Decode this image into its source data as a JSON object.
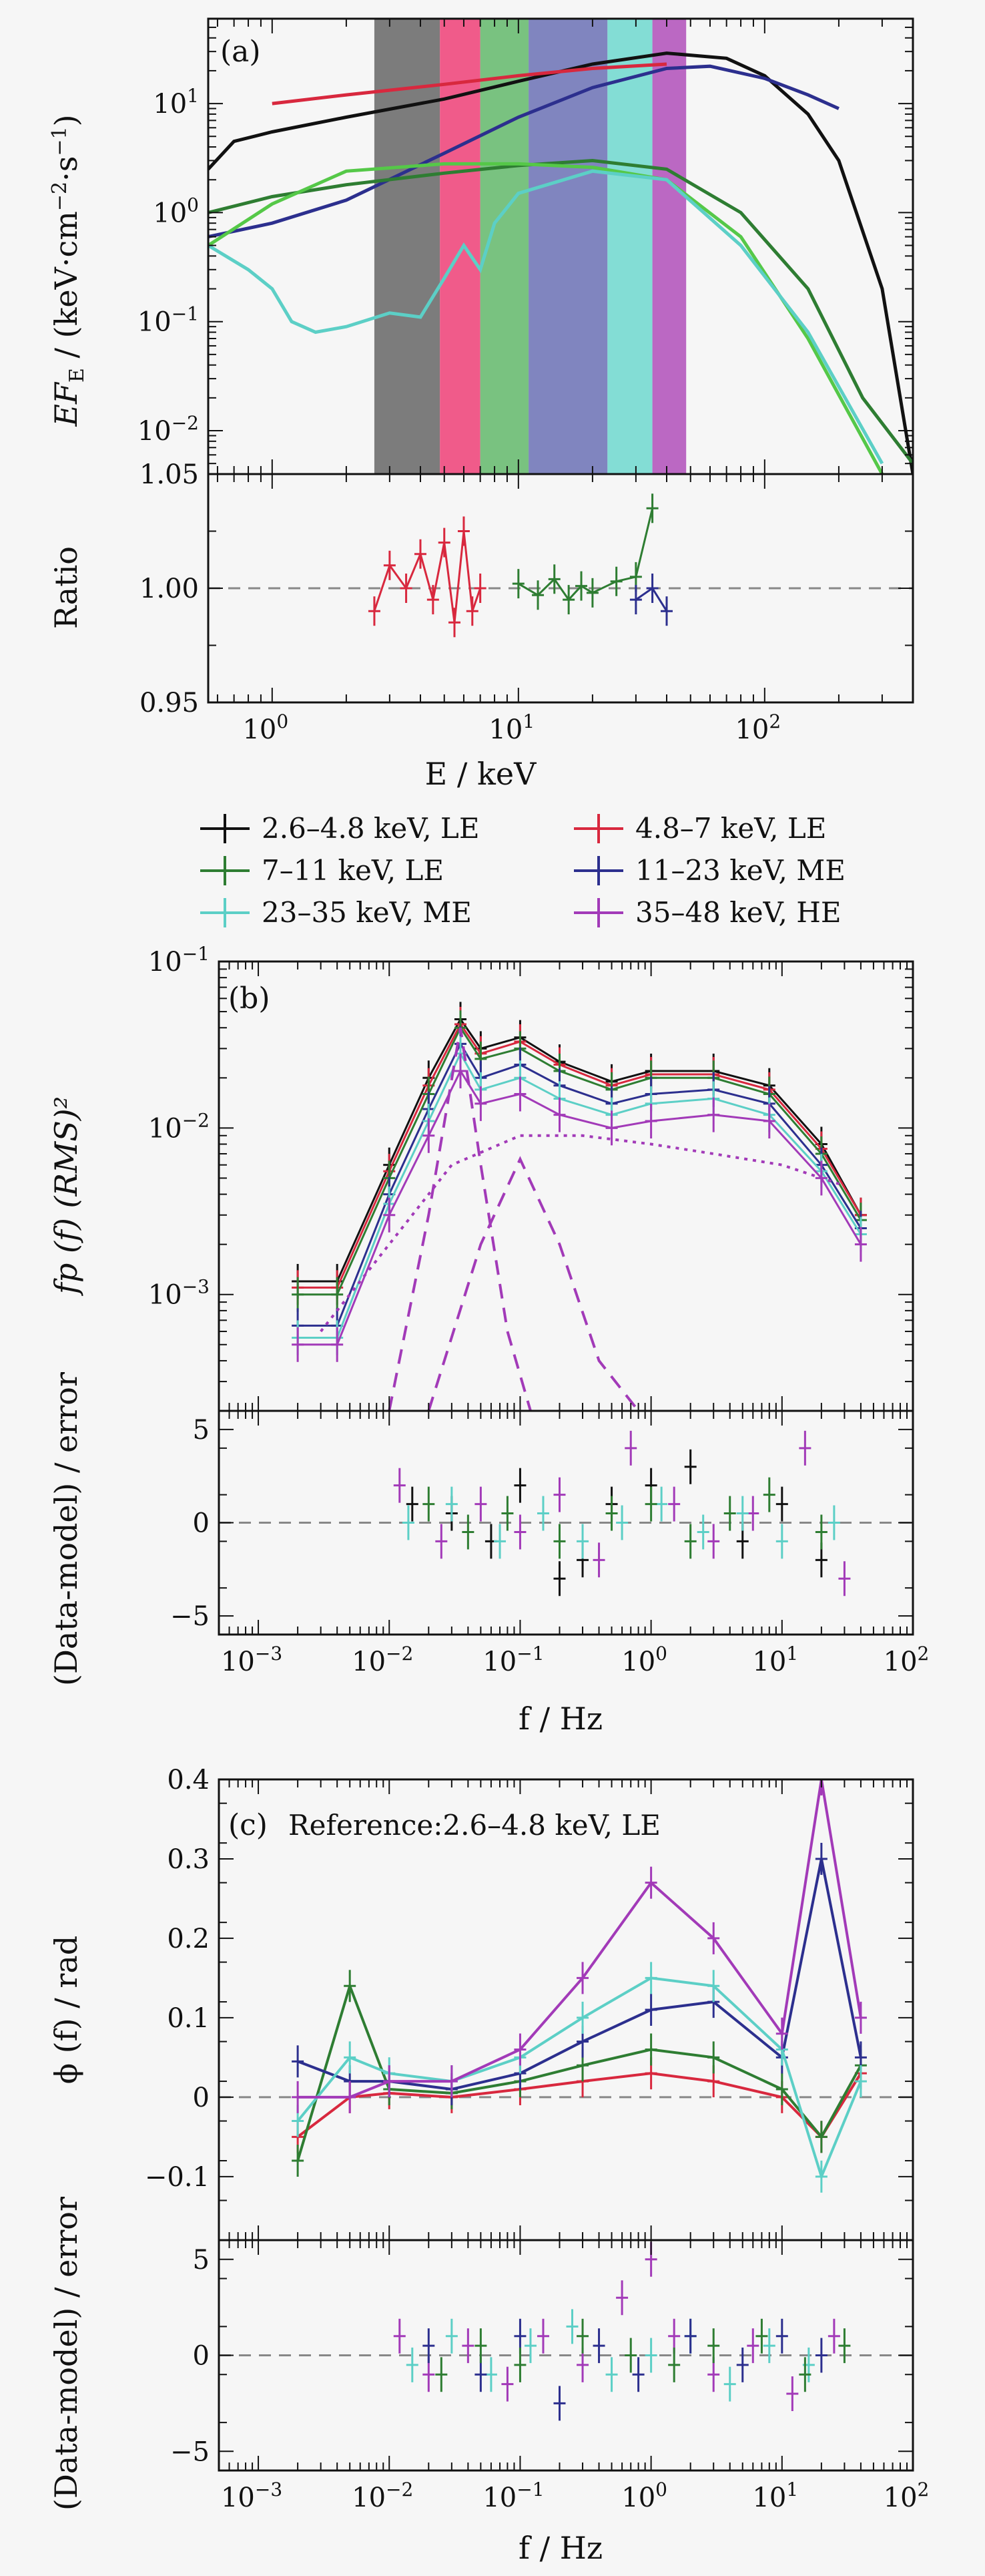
{
  "colors": {
    "black": "#111111",
    "red": "#d8283e",
    "green": "#2e7d32",
    "navy": "#2c2f8e",
    "cyan": "#5ccfc6",
    "purple": "#a23ab8",
    "bright_green": "#55c848",
    "gray_band": "#666666",
    "pink_band": "#ee3f77",
    "green_band": "#63b86b",
    "blue_band": "#6b71b5",
    "cyan_band": "#6fd8cf",
    "purple_band": "#b04fba"
  },
  "legend": [
    {
      "label": "2.6–4.8 keV, LE",
      "color": "black"
    },
    {
      "label": "4.8–7 keV, LE",
      "color": "red"
    },
    {
      "label": "7–11 keV, LE",
      "color": "green"
    },
    {
      "label": "11–23 keV, ME",
      "color": "navy"
    },
    {
      "label": "23–35 keV, ME",
      "color": "cyan"
    },
    {
      "label": "35–48 keV, HE",
      "color": "purple"
    }
  ],
  "chart_data": [
    {
      "type": "line",
      "panel": "(a)",
      "xlabel": "E / keV",
      "ylabel": "EF_E / (keV·cm⁻²·s⁻¹)",
      "xscale": "log",
      "yscale": "log",
      "xlim": [
        0.55,
        400
      ],
      "ylim": [
        0.004,
        60
      ],
      "x_ticks": [
        "10^0",
        "10^1",
        "10^2"
      ],
      "y_ticks": [
        "10^-2",
        "10^-1",
        "10^0",
        "10^1"
      ],
      "bands": [
        {
          "range": [
            2.6,
            4.8
          ],
          "color": "gray_band"
        },
        {
          "range": [
            4.8,
            7
          ],
          "color": "pink_band"
        },
        {
          "range": [
            7,
            11
          ],
          "color": "green_band"
        },
        {
          "range": [
            11,
            23
          ],
          "color": "blue_band"
        },
        {
          "range": [
            23,
            35
          ],
          "color": "cyan_band"
        },
        {
          "range": [
            35,
            48
          ],
          "color": "purple_band"
        }
      ],
      "series": [
        {
          "color": "black",
          "x": [
            0.55,
            0.7,
            1,
            2,
            5,
            10,
            20,
            40,
            70,
            100,
            150,
            200,
            300,
            400
          ],
          "y": [
            2.5,
            4.5,
            5.5,
            7.5,
            11,
            16,
            23,
            29,
            26,
            18,
            8,
            3,
            0.2,
            0.004
          ]
        },
        {
          "color": "red",
          "x": [
            1,
            2,
            5,
            10,
            20,
            40
          ],
          "y": [
            10,
            12,
            15,
            18,
            21,
            23
          ]
        },
        {
          "color": "navy",
          "x": [
            0.55,
            1,
            2,
            5,
            10,
            20,
            40,
            60,
            100,
            150,
            200
          ],
          "y": [
            0.6,
            0.8,
            1.3,
            3.5,
            7.5,
            14,
            21,
            22,
            17,
            12,
            9
          ]
        },
        {
          "color": "green",
          "x": [
            0.55,
            1,
            2,
            5,
            10,
            20,
            40,
            80,
            150,
            250,
            400
          ],
          "y": [
            1.0,
            1.4,
            1.8,
            2.3,
            2.7,
            3.0,
            2.5,
            1.0,
            0.2,
            0.02,
            0.005
          ]
        },
        {
          "color": "bright_green",
          "x": [
            0.55,
            1,
            2,
            5,
            10,
            20,
            40,
            80,
            150,
            300
          ],
          "y": [
            0.5,
            1.2,
            2.4,
            2.8,
            2.8,
            2.6,
            2.0,
            0.6,
            0.07,
            0.004
          ]
        },
        {
          "color": "cyan",
          "x": [
            0.55,
            0.8,
            1.0,
            1.2,
            1.5,
            2,
            3,
            4,
            5,
            6,
            7,
            8,
            10,
            20,
            40,
            80,
            150,
            300
          ],
          "y": [
            0.5,
            0.3,
            0.2,
            0.1,
            0.08,
            0.09,
            0.12,
            0.11,
            0.25,
            0.5,
            0.3,
            0.8,
            1.5,
            2.4,
            2.0,
            0.5,
            0.08,
            0.005
          ]
        }
      ]
    },
    {
      "type": "scatter",
      "panel": "(a)",
      "xlabel": "E / keV",
      "ylabel": "Ratio",
      "xscale": "log",
      "xlim": [
        0.55,
        400
      ],
      "ylim": [
        0.95,
        1.05
      ],
      "y_ticks": [
        "0.95",
        "1.00",
        "1.05"
      ],
      "reference_line": 1.0,
      "series": [
        {
          "color": "red",
          "x": [
            2.6,
            3,
            3.5,
            4,
            4.5,
            5,
            5.5,
            6,
            6.5,
            7
          ],
          "y": [
            0.99,
            1.01,
            1.0,
            1.015,
            0.995,
            1.02,
            0.985,
            1.025,
            0.99,
            1.0
          ]
        },
        {
          "color": "green",
          "x": [
            10,
            12,
            14,
            16,
            18,
            20,
            25,
            30,
            35
          ],
          "y": [
            1.002,
            0.997,
            1.004,
            0.995,
            1.001,
            0.998,
            1.003,
            1.005,
            1.035
          ]
        },
        {
          "color": "navy",
          "x": [
            30,
            35,
            40
          ],
          "y": [
            0.995,
            1.0,
            0.99
          ]
        }
      ]
    },
    {
      "type": "line",
      "panel": "(b)",
      "xlabel": "f / Hz",
      "ylabel": "fp (f) (RMS)²",
      "xscale": "log",
      "yscale": "log",
      "xlim": [
        0.0005,
        100
      ],
      "ylim": [
        0.0002,
        0.1
      ],
      "x_ticks": [
        "10^-3",
        "10^-2",
        "10^-1",
        "10^0",
        "10^1",
        "10^2"
      ],
      "y_ticks": [
        "10^-3",
        "10^-2",
        "10^-1"
      ],
      "series": [
        {
          "color": "black",
          "x": [
            0.002,
            0.004,
            0.01,
            0.02,
            0.035,
            0.05,
            0.1,
            0.2,
            0.5,
            1,
            3,
            8,
            20,
            40
          ],
          "y": [
            0.0012,
            0.0012,
            0.006,
            0.02,
            0.045,
            0.03,
            0.035,
            0.025,
            0.019,
            0.022,
            0.022,
            0.018,
            0.008,
            0.003
          ]
        },
        {
          "color": "red",
          "x": [
            0.002,
            0.004,
            0.01,
            0.02,
            0.035,
            0.05,
            0.1,
            0.2,
            0.5,
            1,
            3,
            8,
            20,
            40
          ],
          "y": [
            0.0011,
            0.0011,
            0.0055,
            0.018,
            0.042,
            0.028,
            0.033,
            0.024,
            0.018,
            0.021,
            0.021,
            0.017,
            0.0075,
            0.003
          ]
        },
        {
          "color": "green",
          "x": [
            0.002,
            0.004,
            0.01,
            0.02,
            0.035,
            0.05,
            0.1,
            0.2,
            0.5,
            1,
            3,
            8,
            20,
            40
          ],
          "y": [
            0.001,
            0.001,
            0.005,
            0.016,
            0.04,
            0.026,
            0.03,
            0.022,
            0.017,
            0.02,
            0.02,
            0.016,
            0.007,
            0.0028
          ]
        },
        {
          "color": "navy",
          "x": [
            0.002,
            0.004,
            0.01,
            0.02,
            0.035,
            0.05,
            0.1,
            0.2,
            0.5,
            1,
            3,
            8,
            20,
            40
          ],
          "y": [
            0.00065,
            0.00065,
            0.004,
            0.013,
            0.032,
            0.02,
            0.024,
            0.018,
            0.014,
            0.016,
            0.017,
            0.014,
            0.006,
            0.0025
          ]
        },
        {
          "color": "cyan",
          "x": [
            0.002,
            0.004,
            0.01,
            0.02,
            0.035,
            0.05,
            0.1,
            0.2,
            0.5,
            1,
            3,
            8,
            20,
            40
          ],
          "y": [
            0.00055,
            0.00055,
            0.0035,
            0.011,
            0.028,
            0.017,
            0.02,
            0.015,
            0.012,
            0.014,
            0.015,
            0.012,
            0.0055,
            0.0023
          ]
        },
        {
          "color": "purple",
          "x": [
            0.002,
            0.004,
            0.01,
            0.02,
            0.035,
            0.05,
            0.1,
            0.2,
            0.5,
            1,
            3,
            8,
            20,
            40
          ],
          "y": [
            0.0005,
            0.0005,
            0.003,
            0.009,
            0.022,
            0.014,
            0.016,
            0.012,
            0.01,
            0.011,
            0.012,
            0.011,
            0.005,
            0.002
          ]
        }
      ],
      "model_components": [
        {
          "color": "purple",
          "style": "dotted",
          "x": [
            0.003,
            0.01,
            0.03,
            0.1,
            0.3,
            1,
            3,
            10,
            30
          ],
          "y": [
            0.0006,
            0.002,
            0.006,
            0.009,
            0.009,
            0.008,
            0.007,
            0.006,
            0.0045
          ]
        },
        {
          "color": "purple",
          "style": "dashed",
          "x": [
            0.01,
            0.02,
            0.035,
            0.05,
            0.08,
            0.12
          ],
          "y": [
            0.0002,
            0.003,
            0.04,
            0.006,
            0.0006,
            0.0002
          ]
        },
        {
          "color": "purple",
          "style": "dashed",
          "x": [
            0.02,
            0.05,
            0.1,
            0.2,
            0.4,
            0.8
          ],
          "y": [
            0.0002,
            0.002,
            0.0065,
            0.002,
            0.0004,
            0.0002
          ]
        }
      ]
    },
    {
      "type": "scatter",
      "panel": "(b)",
      "xlabel": "f / Hz",
      "ylabel": "(Data-model) / error",
      "xscale": "log",
      "xlim": [
        0.0005,
        100
      ],
      "ylim": [
        -6,
        6
      ],
      "y_ticks": [
        "-5",
        "0",
        "5"
      ],
      "reference_line": 0,
      "series": [
        {
          "color": "black",
          "x": [
            0.015,
            0.03,
            0.06,
            0.1,
            0.2,
            0.3,
            0.5,
            1,
            2,
            5,
            10,
            20
          ],
          "y": [
            1,
            0.5,
            -1,
            2,
            -3,
            -2,
            1,
            2,
            3,
            -1,
            1,
            -2
          ]
        },
        {
          "color": "purple",
          "x": [
            0.012,
            0.025,
            0.05,
            0.1,
            0.2,
            0.4,
            0.7,
            1.5,
            3,
            6,
            15,
            30
          ],
          "y": [
            2,
            -1,
            1,
            -0.5,
            1.5,
            -2,
            4,
            1,
            -1,
            0.5,
            4,
            -3
          ]
        },
        {
          "color": "cyan",
          "x": [
            0.014,
            0.03,
            0.07,
            0.15,
            0.3,
            0.6,
            1.2,
            2.5,
            5,
            10,
            25
          ],
          "y": [
            0,
            1,
            -1,
            0.5,
            -1,
            0,
            1,
            -0.5,
            0.5,
            -1,
            0
          ]
        },
        {
          "color": "green",
          "x": [
            0.02,
            0.04,
            0.08,
            0.2,
            0.5,
            1,
            2,
            4,
            8,
            20
          ],
          "y": [
            1,
            -0.5,
            0.5,
            -1,
            0.5,
            1,
            -1,
            0.5,
            1.5,
            -0.5
          ]
        }
      ]
    },
    {
      "type": "line",
      "panel": "(c)",
      "annotation": "Reference:2.6–4.8 keV, LE",
      "xlabel": "f / Hz",
      "ylabel": "ϕ (f) / rad",
      "xscale": "log",
      "xlim": [
        0.0005,
        100
      ],
      "ylim": [
        -0.18,
        0.4
      ],
      "x_ticks": [
        "10^-3",
        "10^-2",
        "10^-1",
        "10^0",
        "10^1",
        "10^2"
      ],
      "y_ticks": [
        "-0.1",
        "0",
        "0.1",
        "0.2",
        "0.3",
        "0.4"
      ],
      "series": [
        {
          "color": "red",
          "x": [
            0.002,
            0.005,
            0.01,
            0.03,
            0.1,
            0.3,
            1,
            3,
            10,
            20,
            40
          ],
          "y": [
            -0.05,
            0.0,
            0.005,
            0.0,
            0.01,
            0.02,
            0.03,
            0.02,
            0.0,
            -0.05,
            0.03
          ]
        },
        {
          "color": "green",
          "x": [
            0.002,
            0.005,
            0.01,
            0.03,
            0.1,
            0.3,
            1,
            3,
            10,
            20,
            40
          ],
          "y": [
            -0.08,
            0.14,
            0.01,
            0.005,
            0.02,
            0.04,
            0.06,
            0.05,
            0.01,
            -0.05,
            0.04
          ]
        },
        {
          "color": "navy",
          "x": [
            0.002,
            0.005,
            0.01,
            0.03,
            0.1,
            0.3,
            1,
            3,
            10,
            20,
            40
          ],
          "y": [
            0.045,
            0.02,
            0.02,
            0.01,
            0.03,
            0.07,
            0.11,
            0.12,
            0.05,
            0.3,
            0.05
          ]
        },
        {
          "color": "cyan",
          "x": [
            0.002,
            0.005,
            0.01,
            0.03,
            0.1,
            0.3,
            1,
            3,
            10,
            20,
            40
          ],
          "y": [
            -0.03,
            0.05,
            0.03,
            0.02,
            0.05,
            0.1,
            0.15,
            0.14,
            0.06,
            -0.1,
            0.02
          ]
        },
        {
          "color": "purple",
          "x": [
            0.002,
            0.005,
            0.01,
            0.03,
            0.1,
            0.3,
            1,
            3,
            10,
            20,
            40
          ],
          "y": [
            0.0,
            0.0,
            0.02,
            0.02,
            0.06,
            0.15,
            0.27,
            0.2,
            0.08,
            0.4,
            0.1
          ]
        }
      ]
    },
    {
      "type": "scatter",
      "panel": "(c)",
      "xlabel": "f / Hz",
      "ylabel": "(Data-model) / error",
      "xscale": "log",
      "xlim": [
        0.0005,
        100
      ],
      "ylim": [
        -6,
        6
      ],
      "x_ticks": [
        "10^-3",
        "10^-2",
        "10^-1",
        "10^0",
        "10^1",
        "10^2"
      ],
      "y_ticks": [
        "-5",
        "0",
        "5"
      ],
      "reference_line": 0,
      "series": [
        {
          "color": "purple",
          "x": [
            0.012,
            0.02,
            0.04,
            0.08,
            0.15,
            0.3,
            0.6,
            1,
            1.5,
            3,
            6,
            12,
            25
          ],
          "y": [
            1,
            -1,
            0.5,
            -1.5,
            1,
            -0.5,
            3,
            5,
            1,
            -1,
            0.5,
            -2,
            1
          ]
        },
        {
          "color": "cyan",
          "x": [
            0.015,
            0.03,
            0.06,
            0.12,
            0.25,
            0.5,
            1,
            2,
            4,
            8,
            16
          ],
          "y": [
            -0.5,
            1,
            -1,
            0.5,
            1.5,
            -1,
            0,
            1,
            -1.5,
            0.5,
            -0.5
          ]
        },
        {
          "color": "navy",
          "x": [
            0.02,
            0.05,
            0.1,
            0.2,
            0.4,
            0.8,
            2,
            5,
            10,
            20
          ],
          "y": [
            0.5,
            -1,
            1,
            -2.5,
            0.5,
            -1,
            1,
            -0.5,
            1,
            0
          ]
        },
        {
          "color": "green",
          "x": [
            0.025,
            0.05,
            0.1,
            0.3,
            0.7,
            1.5,
            3,
            7,
            15,
            30
          ],
          "y": [
            -1,
            0.5,
            -0.5,
            1,
            0,
            -0.5,
            0.5,
            1,
            -1,
            0.5
          ]
        }
      ]
    }
  ],
  "panels": {
    "a_label": "(a)",
    "a_xlabel": "E / keV",
    "a_ylabel": "EF",
    "a_ylabel_sub": "E",
    "a_ylabel_rest": " / (keV·cm",
    "a_ylabel_sup1": "−2",
    "a_ylabel_mid": "·s",
    "a_ylabel_sup2": "−1",
    "a_ylabel_end": ")",
    "a_ratio_ylabel": "Ratio",
    "b_label": "(b)",
    "b_xlabel": "f / Hz",
    "b_ylabel": "fp (f) (RMS)²",
    "b_res_ylabel": "(Data-model) / error",
    "c_label": "(c)",
    "c_ref": "Reference:2.6–4.8 keV, LE",
    "c_xlabel": "f / Hz",
    "c_ylabel": "ϕ (f) / rad",
    "c_res_ylabel": "(Data-model) / error"
  }
}
